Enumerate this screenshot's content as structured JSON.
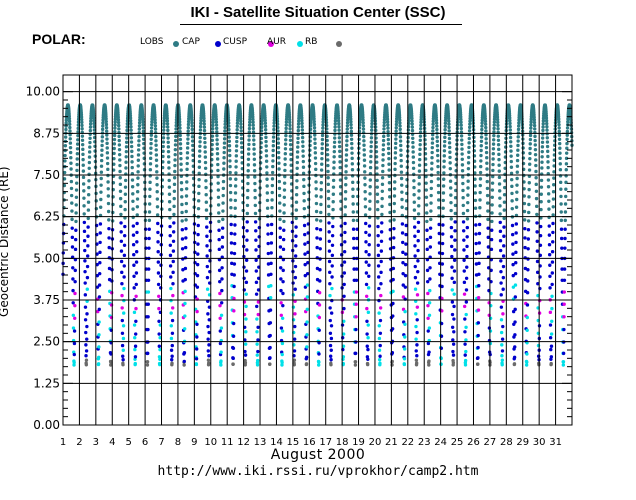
{
  "header": {
    "title": "IKI - Satellite Situation Center (SSC)",
    "satellite": "POLAR:"
  },
  "footer": {
    "month_year": "August   2000",
    "url": "http://www.iki.rssi.ru/vprokhor/camp2.htm"
  },
  "colors": {
    "LOBS": "#2e7b84",
    "CAP": "#0000cc",
    "CUSP": "#e000e0",
    "AUR": "#00e0e8",
    "RB": "#6a6a6a"
  },
  "chart_data": {
    "type": "scatter",
    "title": "IKI - Satellite Situation Center (SSC)",
    "ylabel": "Geocentric Distance (RE)",
    "xlabel": "August   2000",
    "x_tick_labels": [
      "1",
      "2",
      "3",
      "4",
      "5",
      "6",
      "7",
      "8",
      "9",
      "10",
      "11",
      "12",
      "13",
      "14",
      "15",
      "16",
      "17",
      "18",
      "19",
      "20",
      "21",
      "22",
      "23",
      "24",
      "25",
      "26",
      "27",
      "28",
      "29",
      "30",
      "31"
    ],
    "xlim": [
      1,
      32
    ],
    "ylim": [
      0,
      10.5
    ],
    "y_ticks": [
      0.0,
      1.25,
      2.5,
      3.75,
      5.0,
      6.25,
      7.5,
      8.75,
      10.0
    ],
    "y_tick_labels": [
      "0.00",
      "1.25",
      "2.50",
      "3.75",
      "5.00",
      "6.25",
      "7.50",
      "8.75",
      "10.00"
    ],
    "grid": true,
    "legend": {
      "placement": "top",
      "entries": [
        {
          "name": "LOBS",
          "color_key": "LOBS"
        },
        {
          "name": "CAP",
          "color_key": "CAP"
        },
        {
          "name": "CUSP",
          "color_key": "CUSP"
        },
        {
          "name": "AUR",
          "color_key": "AUR"
        },
        {
          "name": "RB",
          "color_key": "RB"
        }
      ]
    },
    "orbit": {
      "period_days": 0.745,
      "perigee_re": 1.8,
      "apogee_re": 9.6,
      "first_apogee_day": 1.3
    },
    "series": [
      {
        "name": "LOBS",
        "range_re": [
          6.0,
          9.6
        ]
      },
      {
        "name": "CAP",
        "range_re": [
          1.8,
          6.2
        ]
      },
      {
        "name": "CUSP",
        "range_re": [
          3.2,
          4.0
        ]
      },
      {
        "name": "AUR",
        "range_re": [
          1.8,
          4.2
        ]
      },
      {
        "name": "RB",
        "range_re": [
          1.6,
          2.0
        ]
      }
    ]
  }
}
